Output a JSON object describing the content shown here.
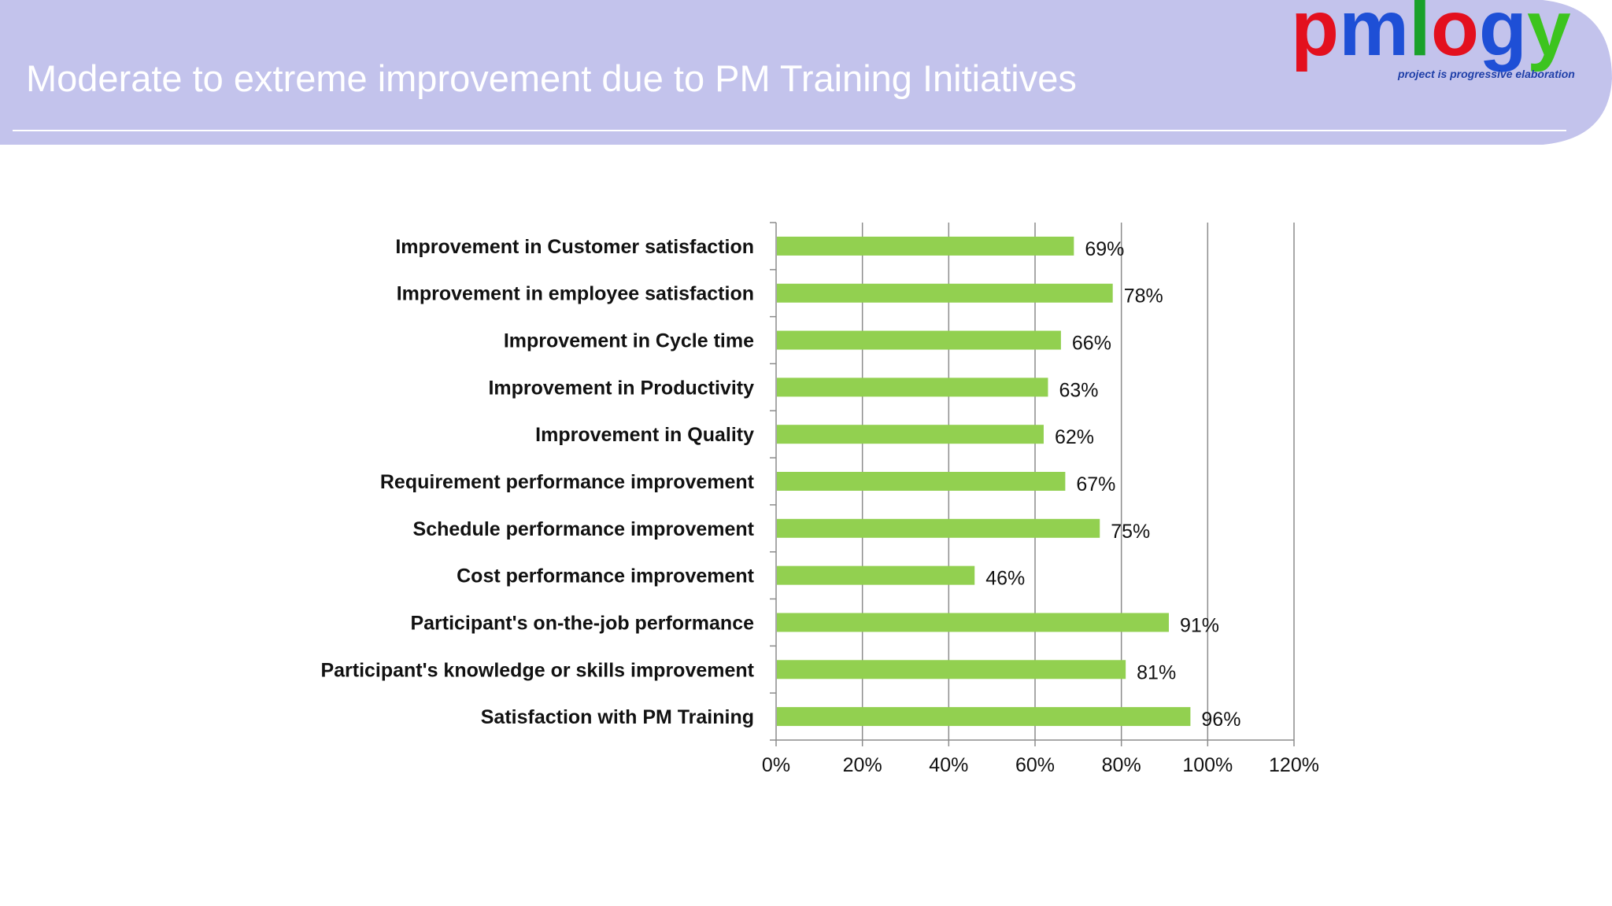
{
  "slide": {
    "title": "Moderate to extreme improvement due to PM Training Initiatives"
  },
  "logo": {
    "letters": [
      {
        "char": "p",
        "color": "#e3101e"
      },
      {
        "char": "m",
        "color": "#1e4fd6"
      },
      {
        "char": "l",
        "color": "#1aa12a"
      },
      {
        "char": "o",
        "color": "#e3101e"
      },
      {
        "char": "g",
        "color": "#1e4fd6"
      },
      {
        "char": "y",
        "color": "#3cc41e"
      }
    ],
    "tagline": "project is progressive elaboration"
  },
  "colors": {
    "header_bg": "#c3c3ec",
    "bar": "#92d050",
    "gridline": "#8c8c8c"
  },
  "chart_data": {
    "type": "bar",
    "orientation": "horizontal",
    "categories": [
      "Improvement in Customer satisfaction",
      "Improvement in employee satisfaction",
      "Improvement in Cycle time",
      "Improvement in Productivity",
      "Improvement in Quality",
      "Requirement performance improvement",
      "Schedule performance improvement",
      "Cost performance improvement",
      "Participant's on-the-job performance",
      "Participant's knowledge or skills improvement",
      "Satisfaction with PM Training"
    ],
    "values": [
      69,
      78,
      66,
      63,
      62,
      67,
      75,
      46,
      91,
      81,
      96
    ],
    "value_labels": [
      "69%",
      "78%",
      "66%",
      "63%",
      "62%",
      "67%",
      "75%",
      "46%",
      "91%",
      "81%",
      "96%"
    ],
    "xlim": [
      0,
      120
    ],
    "xticks": [
      0,
      20,
      40,
      60,
      80,
      100,
      120
    ],
    "xtick_labels": [
      "0%",
      "20%",
      "40%",
      "60%",
      "80%",
      "100%",
      "120%"
    ],
    "grid": true,
    "legend": "none",
    "title": "",
    "xlabel": "",
    "ylabel": ""
  }
}
